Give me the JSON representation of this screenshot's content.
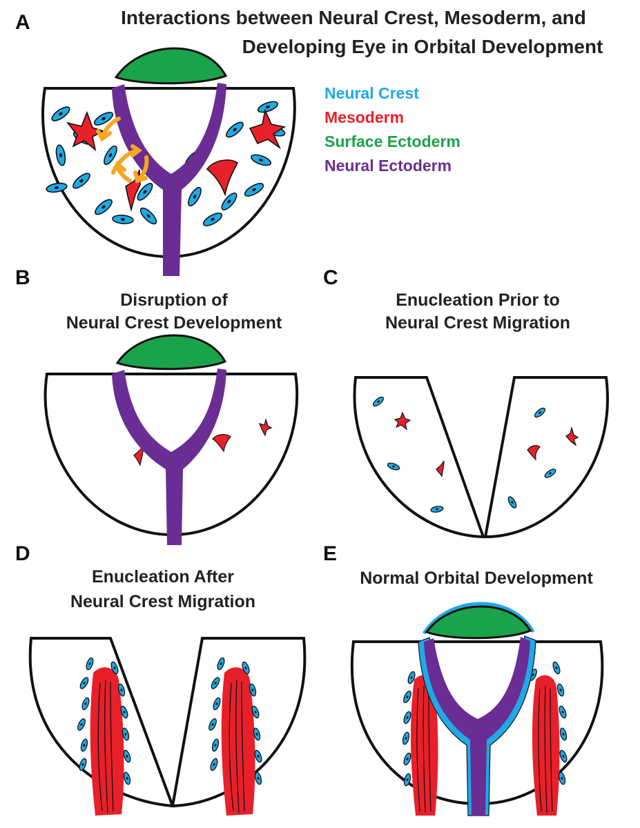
{
  "title": {
    "line1": "Interactions between Neural Crest, Mesoderm, and",
    "line2": "Developing Eye in Orbital Development"
  },
  "legend": [
    {
      "label": "Neural Crest",
      "color": "#1fa9e6"
    },
    {
      "label": "Mesoderm",
      "color": "#e8202a"
    },
    {
      "label": "Surface Ectoderm",
      "color": "#1aa34a"
    },
    {
      "label": "Neural Ectoderm",
      "color": "#6a2d93"
    }
  ],
  "panels": {
    "A": {
      "label": "A"
    },
    "B": {
      "label": "B",
      "caption_line1": "Disruption of",
      "caption_line2": "Neural Crest Development"
    },
    "C": {
      "label": "C",
      "caption_line1": "Enucleation Prior to",
      "caption_line2": "Neural Crest Migration"
    },
    "D": {
      "label": "D",
      "caption_line1": "Enucleation After",
      "caption_line2": "Neural Crest Migration"
    },
    "E": {
      "label": "E",
      "caption_line1": "Normal Orbital Development"
    }
  },
  "colors": {
    "neural_crest": "#1fa9e6",
    "mesoderm": "#e8202a",
    "surface_ectoderm": "#1aa34a",
    "neural_ectoderm": "#6a2d93",
    "interaction_arrows": "#f5a623",
    "outline": "#111111"
  }
}
